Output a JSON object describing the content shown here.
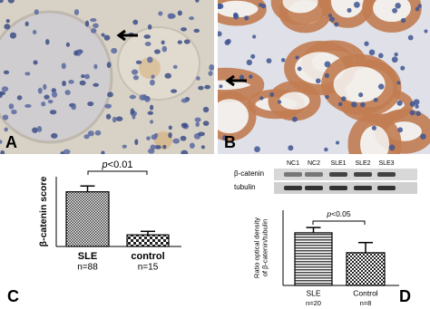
{
  "figure": {
    "panel_labels": [
      "A",
      "B",
      "C",
      "D"
    ]
  },
  "blot": {
    "lanes": [
      "NC1",
      "NC2",
      "SLE1",
      "SLE2",
      "SLE3"
    ],
    "rows": [
      "β-catenin",
      "tubulin"
    ]
  },
  "chart_data": [
    {
      "type": "bar",
      "ylabel": [
        "β-catenin score"
      ],
      "categories": [
        "SLE",
        "control"
      ],
      "sublabels": [
        "n=88",
        "n=15"
      ],
      "values": [
        0.47,
        0.1
      ],
      "errors": [
        0.05,
        0.03
      ],
      "ylim": [
        0,
        0.6
      ],
      "significance": {
        "symbol": "p",
        "text": "<0.01"
      }
    },
    {
      "type": "bar",
      "ylabel": [
        "Ratio optical density",
        "of β-catenin/tubulin"
      ],
      "categories": [
        "SLE",
        "Control"
      ],
      "sublabels": [
        "n=20",
        "n=8"
      ],
      "values": [
        1.4,
        0.87
      ],
      "errors": [
        0.14,
        0.27
      ],
      "ylim": [
        0,
        2
      ],
      "significance": {
        "symbol": "p",
        "text": "<0.05"
      }
    }
  ]
}
